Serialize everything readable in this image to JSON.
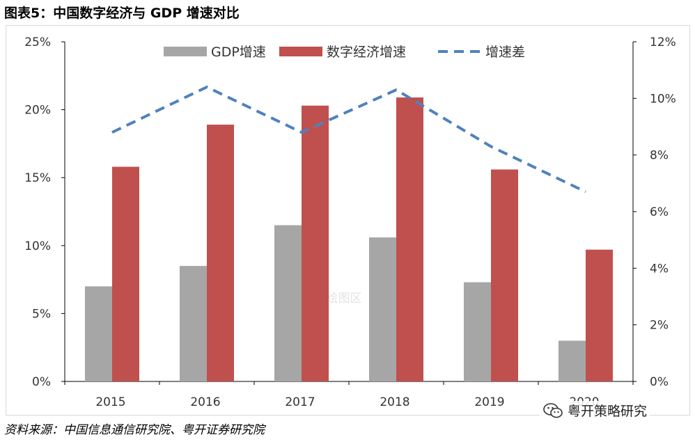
{
  "figure": {
    "title": "图表5：中国数字经济与 GDP 增速对比",
    "source": "资料来源：中国信息通信研究院、粤开证券研究院",
    "watermark_text": "粤开策略研究",
    "plot_area_label": "绘图区"
  },
  "chart_data": {
    "type": "bar",
    "categories": [
      "2015",
      "2016",
      "2017",
      "2018",
      "2019",
      "2020"
    ],
    "series": [
      {
        "name": "GDP增速",
        "kind": "bar",
        "axis": "left",
        "color": "#a6a6a6",
        "values": [
          7.0,
          8.5,
          11.5,
          10.6,
          7.3,
          3.0
        ]
      },
      {
        "name": "数字经济增速",
        "kind": "bar",
        "axis": "left",
        "color": "#c0504d",
        "values": [
          15.8,
          18.9,
          20.3,
          20.9,
          15.6,
          9.7
        ]
      },
      {
        "name": "增速差",
        "kind": "line",
        "style": "dashed",
        "axis": "right",
        "color": "#4f81bd",
        "values": [
          8.8,
          10.4,
          8.8,
          10.3,
          8.3,
          6.7
        ]
      }
    ],
    "y_left": {
      "min": 0,
      "max": 25,
      "step": 5,
      "format": "percent",
      "ticks": [
        "0%",
        "5%",
        "10%",
        "15%",
        "20%",
        "25%"
      ]
    },
    "y_right": {
      "min": 0,
      "max": 12,
      "step": 2,
      "format": "percent",
      "ticks": [
        "0%",
        "2%",
        "4%",
        "6%",
        "8%",
        "10%",
        "12%"
      ]
    },
    "grid": false,
    "legend_position": "top"
  }
}
